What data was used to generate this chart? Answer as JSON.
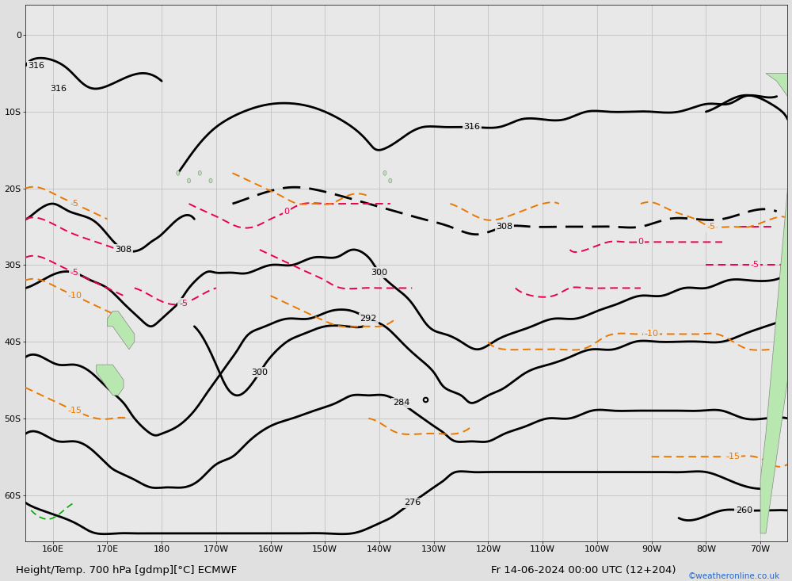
{
  "title": "Height/Temp. 700 hPa [gdmp][°C] ECMWF",
  "date_str": "Fr 14-06-2024 00:00 UTC (12+204)",
  "credit": "©weatheronline.co.uk",
  "bg_color": "#e0e0e0",
  "map_bg_color": "#e8e8e8",
  "grid_color": "#c8c8c8",
  "label_fontsize": 8,
  "title_fontsize": 9.5,
  "figsize": [
    10.0,
    7.33
  ],
  "dpi": 100,
  "xlim": [
    155.0,
    295.0
  ],
  "ylim": [
    -66.0,
    4.0
  ],
  "xtick_vals": [
    160,
    170,
    180,
    190,
    200,
    210,
    220,
    230,
    240,
    250,
    260,
    270,
    280,
    290
  ],
  "xticklabels": [
    "160E",
    "170E",
    "180",
    "170W",
    "160W",
    "150W",
    "140W",
    "130W",
    "120W",
    "110W",
    "100W",
    "90W",
    "80W",
    "70W"
  ],
  "ytick_vals": [
    -60,
    -50,
    -40,
    -30,
    -20,
    -10,
    0
  ],
  "yticklabels": [
    "60S",
    "50S",
    "40S",
    "30S",
    "20S",
    "10S",
    "0"
  ],
  "height_color": "#000000",
  "height_lw": 2.0,
  "temp_pink_color": "#e8004a",
  "temp_pink_lw": 1.4,
  "temp_orange_color": "#e87800",
  "temp_orange_lw": 1.4,
  "temp_green_color": "#00aa00",
  "temp_green_lw": 1.2,
  "land_color": "#b8e8b0",
  "land_edge_color": "#888888",
  "south_america_color": "#b8e8b0",
  "low_x": 228.5,
  "low_y": -47.5
}
